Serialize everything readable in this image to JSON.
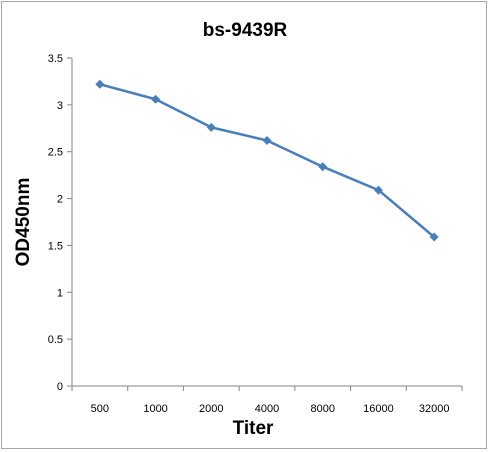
{
  "chart_data": {
    "type": "line",
    "title": "bs-9439R",
    "xlabel": "Titer",
    "ylabel": "OD450nm",
    "categories": [
      "500",
      "1000",
      "2000",
      "4000",
      "8000",
      "16000",
      "32000"
    ],
    "series": [
      {
        "values": [
          3.22,
          3.06,
          2.76,
          2.62,
          2.34,
          2.09,
          1.59
        ]
      }
    ],
    "ylim": [
      0,
      3.5
    ],
    "yticks": [
      "0",
      "0.5",
      "1",
      "1.5",
      "2",
      "2.5",
      "3",
      "3.5"
    ],
    "grid": false,
    "legend": "none",
    "line_color": "#4a7ebb"
  }
}
